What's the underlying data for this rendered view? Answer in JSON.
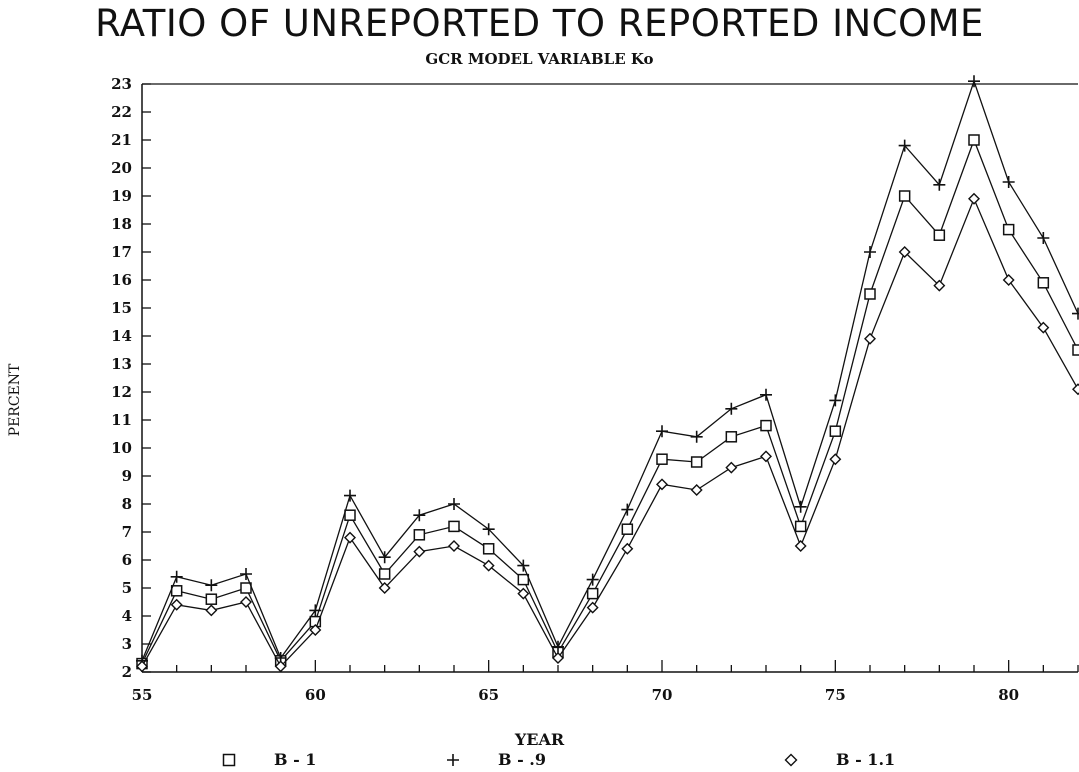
{
  "chart_data": {
    "type": "line",
    "title": "RATIO OF UNREPORTED TO REPORTED INCOME",
    "subtitle": "GCR MODEL VARIABLE Ko",
    "xlabel": "YEAR",
    "ylabel": "PERCENT",
    "xlim": [
      55,
      82
    ],
    "ylim": [
      2,
      23
    ],
    "xticks": [
      55,
      60,
      65,
      70,
      75,
      80
    ],
    "xtick_labels": [
      "55",
      "60",
      "65",
      "70",
      "75",
      "80"
    ],
    "yticks": [
      2,
      3,
      4,
      5,
      6,
      7,
      8,
      9,
      10,
      11,
      12,
      13,
      14,
      15,
      16,
      17,
      18,
      19,
      20,
      21,
      22,
      23
    ],
    "ytick_labels": [
      "2",
      "3",
      "4",
      "5",
      "6",
      "7",
      "8",
      "9",
      "10",
      "11",
      "12",
      "13",
      "14",
      "15",
      "16",
      "17",
      "18",
      "19",
      "20",
      "21",
      "22",
      "23"
    ],
    "x": [
      55,
      56,
      57,
      58,
      59,
      60,
      61,
      62,
      63,
      64,
      65,
      66,
      67,
      68,
      69,
      70,
      71,
      72,
      73,
      74,
      75,
      76,
      77,
      78,
      79,
      80,
      81,
      82
    ],
    "series": [
      {
        "name": "B - 1",
        "marker": "square",
        "values": [
          2.3,
          4.9,
          4.6,
          5.0,
          2.4,
          3.8,
          7.6,
          5.5,
          6.9,
          7.2,
          6.4,
          5.3,
          2.7,
          4.8,
          7.1,
          9.6,
          9.5,
          10.4,
          10.8,
          7.2,
          10.6,
          15.5,
          19.0,
          17.6,
          21.0,
          17.8,
          15.9,
          13.5
        ]
      },
      {
        "name": "B - .9",
        "marker": "plus",
        "values": [
          2.4,
          5.4,
          5.1,
          5.5,
          2.5,
          4.2,
          8.3,
          6.1,
          7.6,
          8.0,
          7.1,
          5.8,
          2.9,
          5.3,
          7.8,
          10.6,
          10.4,
          11.4,
          11.9,
          7.9,
          11.7,
          17.0,
          20.8,
          19.4,
          23.1,
          19.5,
          17.5,
          14.8
        ]
      },
      {
        "name": "B - 1.1",
        "marker": "diamond",
        "values": [
          2.2,
          4.4,
          4.2,
          4.5,
          2.2,
          3.5,
          6.8,
          5.0,
          6.3,
          6.5,
          5.8,
          4.8,
          2.5,
          4.3,
          6.4,
          8.7,
          8.5,
          9.3,
          9.7,
          6.5,
          9.6,
          13.9,
          17.0,
          15.8,
          18.9,
          16.0,
          14.3,
          12.1
        ]
      }
    ],
    "legend": [
      {
        "symbol": "□",
        "label": "B - 1"
      },
      {
        "symbol": "+",
        "label": "B - .9"
      },
      {
        "symbol": "◇",
        "label": "B - 1.1"
      }
    ],
    "legend_position": "bottom",
    "grid": false
  }
}
